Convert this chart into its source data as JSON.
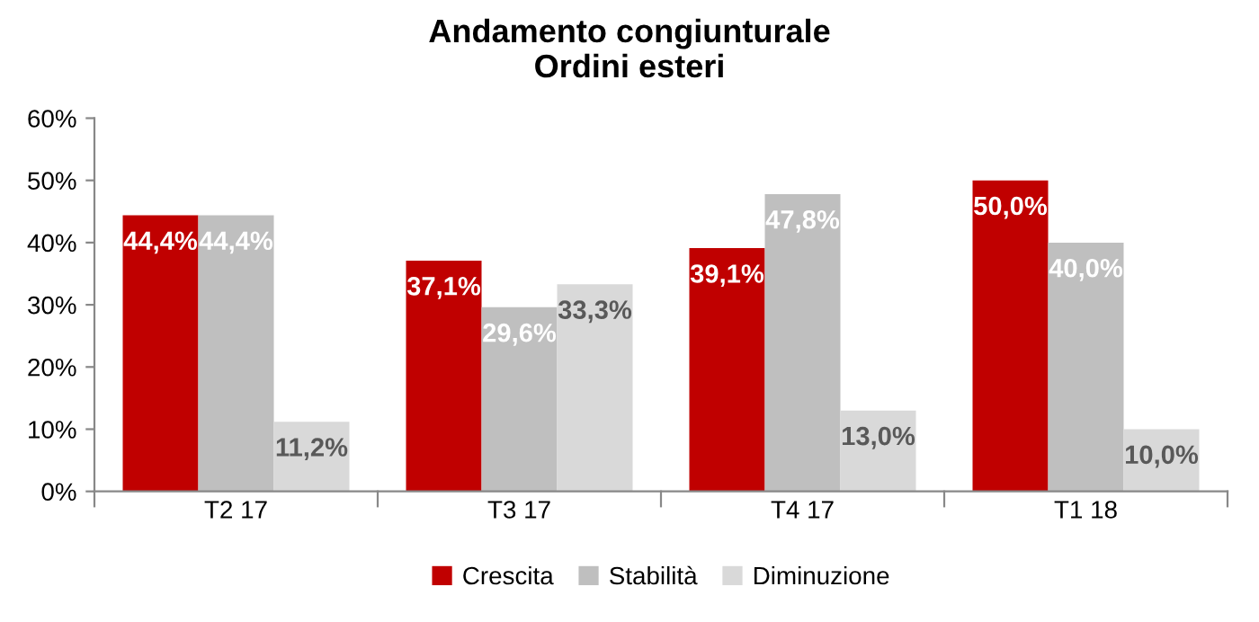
{
  "chart_data": {
    "type": "bar",
    "title": "Andamento congiunturale\nOrdini esteri",
    "categories": [
      "T2 17",
      "T3 17",
      "T4 17",
      "T1 18"
    ],
    "series": [
      {
        "name": "Crescita",
        "color": "#c00000",
        "values": [
          44.4,
          37.1,
          39.1,
          50.0
        ],
        "value_labels": [
          "44,4%",
          "37,1%",
          "39,1%",
          "50,0%"
        ]
      },
      {
        "name": "Stabilità",
        "color": "#bfbfbf",
        "values": [
          44.4,
          29.6,
          47.8,
          40.0
        ],
        "value_labels": [
          "44,4%",
          "29,6%",
          "47,8%",
          "40,0%"
        ]
      },
      {
        "name": "Diminuzione",
        "color": "#d9d9d9",
        "values": [
          11.2,
          33.3,
          13.0,
          10.0
        ],
        "value_labels": [
          "11,2%",
          "33,3%",
          "13,0%",
          "10,0%"
        ]
      }
    ],
    "ylim": [
      0,
      60
    ],
    "yticks": [
      {
        "value": 0,
        "label": "0%"
      },
      {
        "value": 10,
        "label": "10%"
      },
      {
        "value": 20,
        "label": "20%"
      },
      {
        "value": 30,
        "label": "30%"
      },
      {
        "value": 40,
        "label": "40%"
      },
      {
        "value": 50,
        "label": "50%"
      },
      {
        "value": 60,
        "label": "60%"
      }
    ],
    "grid": false,
    "legend": "bottom"
  }
}
